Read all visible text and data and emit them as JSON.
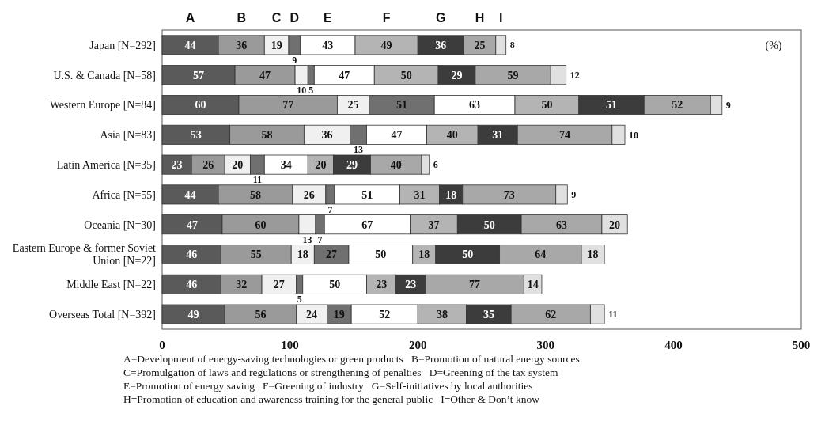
{
  "chart_data": {
    "type": "bar",
    "orientation": "horizontal",
    "stacked": true,
    "data_labels": true,
    "legend": "top",
    "categories": [
      "Japan [N=292]",
      "U.S. & Canada [N=58]",
      "Western Europe [N=84]",
      "Asia [N=83]",
      "Latin America [N=35]",
      "Africa [N=55]",
      "Oceania [N=30]",
      "Eastern Europe & former Soviet Union [N=22]",
      "Middle East  [N=22]",
      "Overseas Total  [N=392]"
    ],
    "series": [
      {
        "name": "A",
        "color": "#5a5a5a",
        "values": [
          44,
          57,
          60,
          53,
          23,
          44,
          47,
          46,
          46,
          49
        ]
      },
      {
        "name": "B",
        "color": "#9a9a9a",
        "values": [
          36,
          47,
          77,
          58,
          26,
          58,
          60,
          55,
          32,
          56
        ]
      },
      {
        "name": "C",
        "color": "#f0f0f0",
        "values": [
          19,
          10,
          25,
          36,
          20,
          26,
          13,
          18,
          27,
          24
        ]
      },
      {
        "name": "D",
        "color": "#707070",
        "values": [
          9,
          5,
          51,
          13,
          11,
          7,
          7,
          27,
          5,
          19
        ]
      },
      {
        "name": "E",
        "color": "#ffffff",
        "values": [
          43,
          47,
          63,
          47,
          34,
          51,
          67,
          50,
          50,
          52
        ]
      },
      {
        "name": "F",
        "color": "#b4b4b4",
        "values": [
          49,
          50,
          50,
          40,
          20,
          31,
          37,
          18,
          23,
          38
        ]
      },
      {
        "name": "G",
        "color": "#3c3c3c",
        "values": [
          36,
          29,
          51,
          31,
          29,
          18,
          50,
          50,
          23,
          35
        ]
      },
      {
        "name": "H",
        "color": "#a8a8a8",
        "values": [
          25,
          59,
          52,
          74,
          40,
          73,
          63,
          64,
          77,
          62
        ]
      },
      {
        "name": "I",
        "color": "#e0e0e0",
        "values": [
          8,
          12,
          9,
          10,
          6,
          9,
          20,
          18,
          14,
          11
        ]
      }
    ],
    "xlim": [
      0,
      500
    ],
    "xticks": [
      0,
      100,
      200,
      300,
      400,
      500
    ],
    "annotations": [
      "(%)",
      "A=Development of energy-saving technologies or green products   B=Promotion of natural energy sources",
      "C=Promulgation of laws and regulations or strengthening of penalties   D=Greening of the tax system",
      "E=Promotion of energy saving   F=Greening of industry   G=Self-initiatives by local authorities",
      "H=Promotion of education and awareness training for the general public   I=Other & Don’t know"
    ]
  }
}
